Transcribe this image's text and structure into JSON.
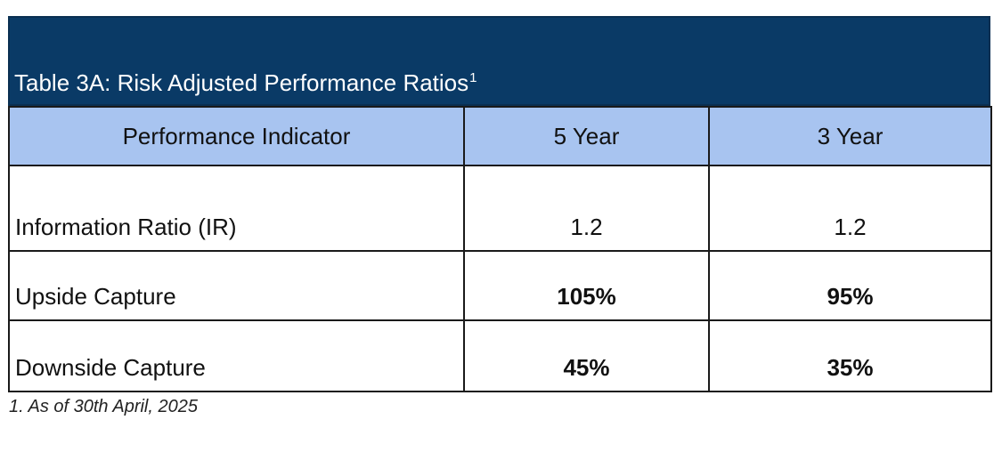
{
  "table": {
    "title": "Table 3A: Risk Adjusted Performance Ratios",
    "title_superscript": "1",
    "headers": [
      "Performance Indicator",
      "5 Year",
      "3 Year"
    ],
    "rows": [
      {
        "label": "Information Ratio (IR)",
        "five_year": "1.2",
        "three_year": "1.2"
      },
      {
        "label": "Upside Capture",
        "five_year": "105%",
        "three_year": "95%"
      },
      {
        "label": "Downside Capture",
        "five_year": "45%",
        "three_year": "35%"
      }
    ],
    "footnote": "1. As of 30th April, 2025"
  },
  "colors": {
    "title_bar": "#0a3a66",
    "header_row": "#a8c4f0",
    "title_text": "#ffffff"
  }
}
